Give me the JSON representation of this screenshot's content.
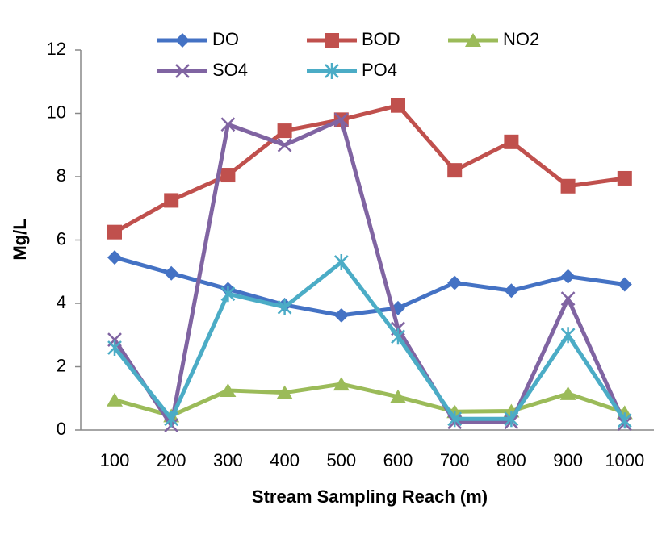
{
  "chart_data": {
    "type": "line",
    "x_label": "Stream Sampling Reach (m)",
    "y_label": "Mg/L",
    "categories": [
      "100",
      "200",
      "300",
      "400",
      "500",
      "600",
      "700",
      "800",
      "900",
      "1000"
    ],
    "ylim": [
      0,
      12
    ],
    "yticks": [
      0,
      2,
      4,
      6,
      8,
      10,
      12
    ],
    "grid": false,
    "legend": "top",
    "series": [
      {
        "name": "DO",
        "color": "#4472c4",
        "marker": "diamond",
        "values": [
          5.45,
          4.95,
          4.45,
          3.95,
          3.62,
          3.85,
          4.65,
          4.4,
          4.85,
          4.6
        ]
      },
      {
        "name": "BOD",
        "color": "#c0504d",
        "marker": "square",
        "values": [
          6.25,
          7.25,
          8.05,
          9.45,
          9.8,
          10.25,
          8.2,
          9.1,
          7.7,
          7.95
        ]
      },
      {
        "name": "NO2",
        "color": "#9bbb59",
        "marker": "triangle",
        "values": [
          0.95,
          0.45,
          1.25,
          1.18,
          1.45,
          1.05,
          0.58,
          0.6,
          1.15,
          0.55
        ]
      },
      {
        "name": "SO4",
        "color": "#8064a2",
        "marker": "x",
        "values": [
          2.85,
          0.15,
          9.65,
          9.0,
          9.8,
          3.2,
          0.25,
          0.25,
          4.15,
          0.2
        ]
      },
      {
        "name": "PO4",
        "color": "#4bacc6",
        "marker": "star",
        "values": [
          2.6,
          0.35,
          4.3,
          3.88,
          5.3,
          2.95,
          0.35,
          0.35,
          3.0,
          0.3
        ]
      }
    ]
  }
}
